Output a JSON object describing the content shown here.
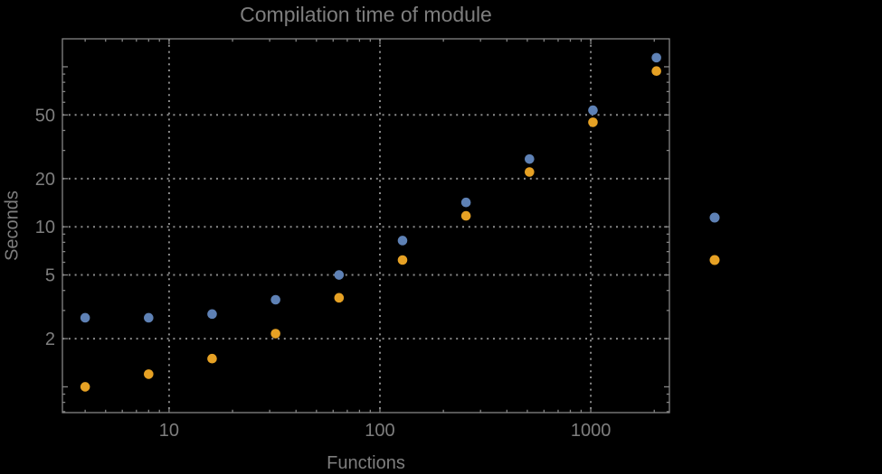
{
  "background_color": "#000000",
  "text_color": "#7e7e7e",
  "frame_color": "#848484",
  "gridline_color": "#8a8a8a",
  "chart_data": {
    "type": "scatter",
    "title": "Compilation time of module",
    "xlabel": "Functions",
    "ylabel": "Seconds",
    "xscale": "log",
    "yscale": "log",
    "xlim": [
      3.12,
      2360
    ],
    "ylim": [
      0.69,
      149.5
    ],
    "grid": "dotted",
    "x_ticks": {
      "values": [
        10,
        100,
        1000
      ],
      "labels": [
        "10",
        "100",
        "1000"
      ]
    },
    "y_ticks": {
      "values": [
        2,
        5,
        10,
        20,
        50
      ],
      "labels": [
        "2",
        "5",
        "10",
        "20",
        "50"
      ]
    },
    "x_gridlines": [
      10,
      100,
      1000
    ],
    "y_gridlines": [
      2,
      5,
      10,
      20,
      50
    ],
    "x": [
      4,
      8,
      16,
      32,
      64,
      128,
      256,
      512,
      1024,
      2048
    ],
    "series": [
      {
        "name": "series-1-blue",
        "color": "#5E81B5",
        "values": [
          2.7,
          2.7,
          2.85,
          3.5,
          5.0,
          8.2,
          14.2,
          26.5,
          53.5,
          114
        ]
      },
      {
        "name": "series-2-orange",
        "color": "#E6A124",
        "values": [
          1.0,
          1.2,
          1.5,
          2.15,
          3.6,
          6.2,
          11.7,
          22,
          45,
          94
        ]
      }
    ],
    "legend": {
      "position": "right-outside",
      "markers": [
        {
          "series": "series-1-blue",
          "color": "#5E81B5"
        },
        {
          "series": "series-2-orange",
          "color": "#E6A124"
        }
      ]
    }
  }
}
